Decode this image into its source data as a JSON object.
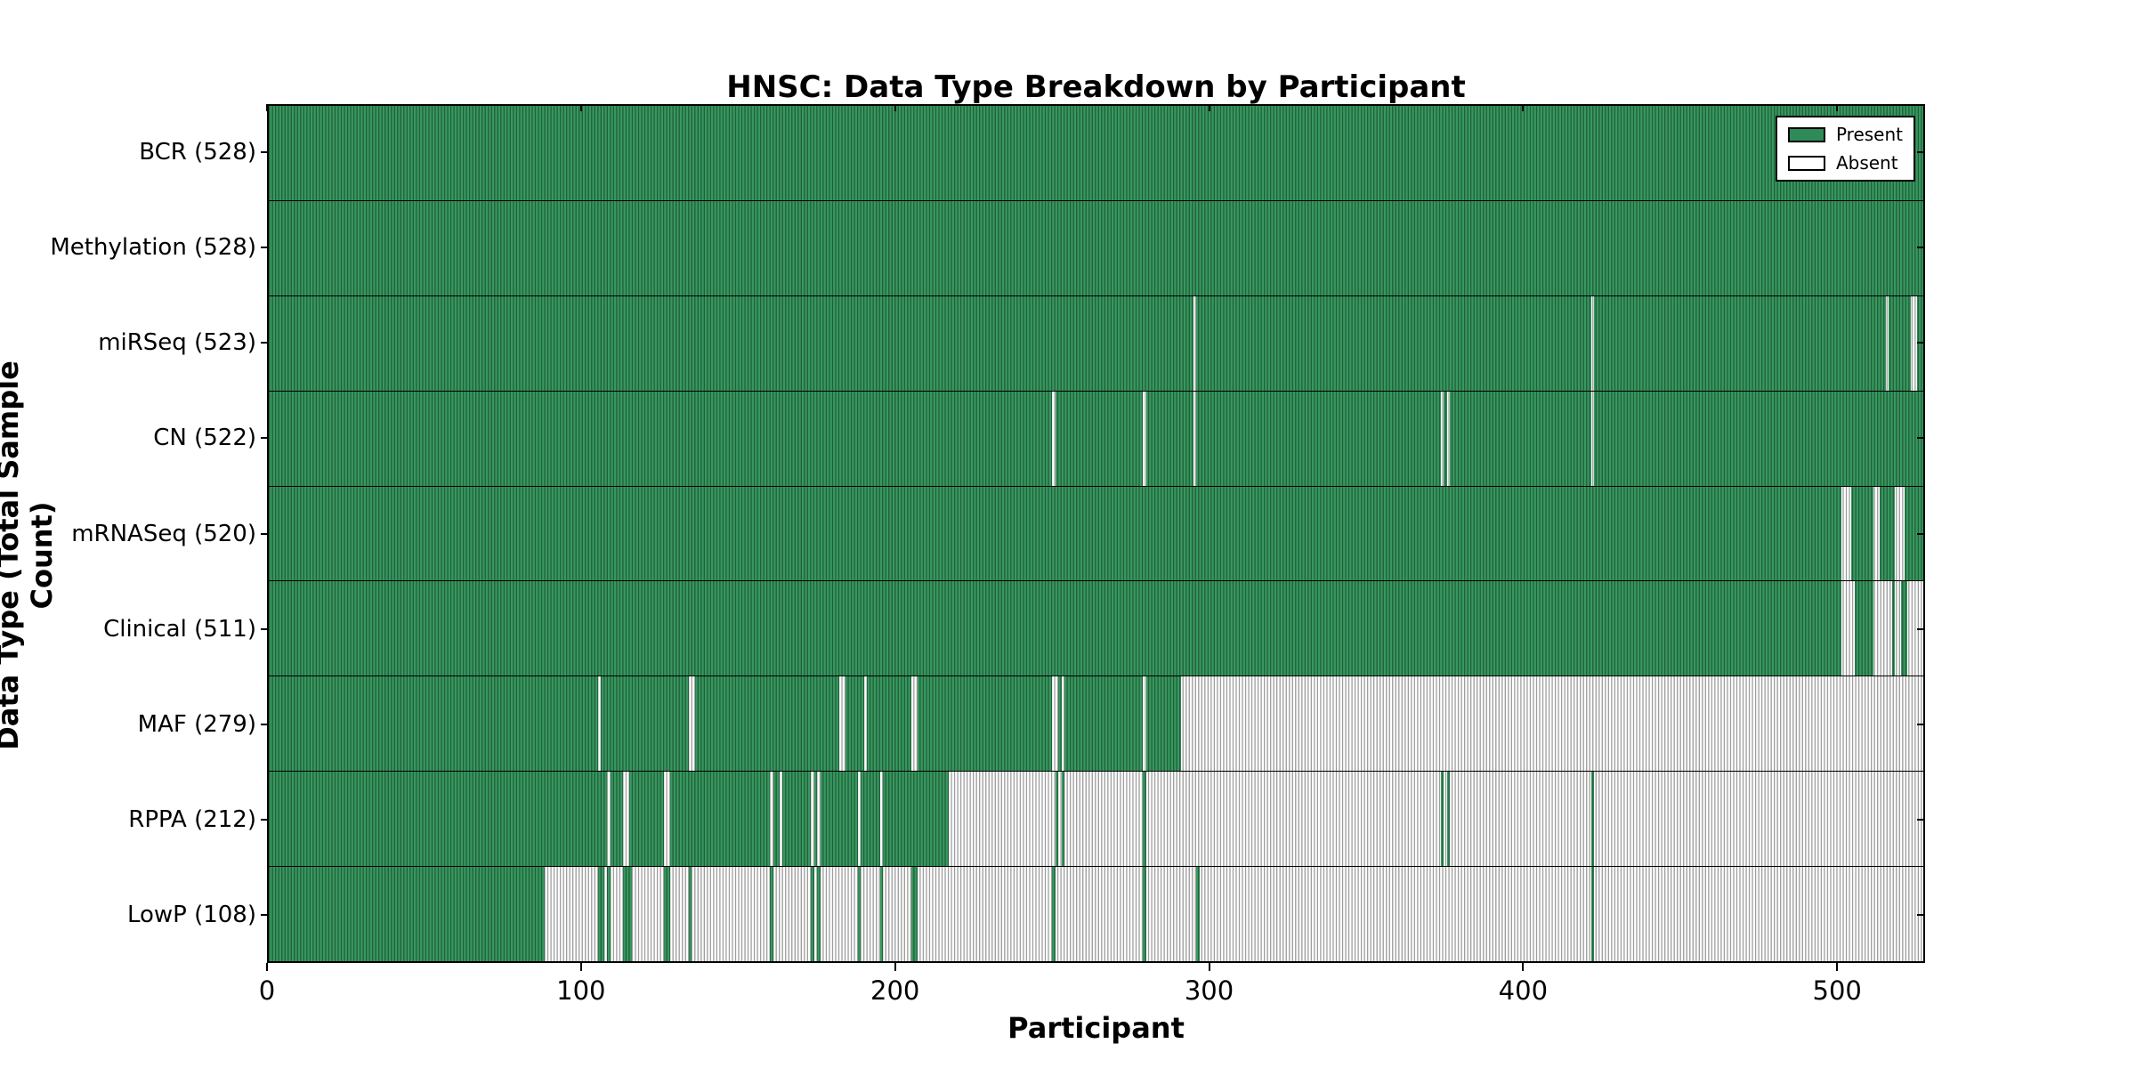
{
  "chart_data": {
    "type": "heatmap",
    "title": "HNSC: Data Type Breakdown by Participant",
    "xlabel": "Participant",
    "ylabel": "Data Type (Total Sample Count)",
    "xlim": [
      0,
      528
    ],
    "x_ticks": [
      0,
      100,
      200,
      300,
      400,
      500
    ],
    "grid": false,
    "legend_position": "upper right",
    "legend": [
      {
        "label": "Present",
        "color": "#2e8b57"
      },
      {
        "label": "Absent",
        "color": "#ffffff"
      }
    ],
    "colors": {
      "present_fill": "#37995f",
      "absent_fill": "#ffffff",
      "hatch_line": "rgba(0,0,0,0.38)",
      "border": "#000000"
    },
    "rows": [
      {
        "label": "BCR (528)",
        "data_type": "BCR",
        "total": 528,
        "segments": [
          [
            0,
            528,
            "p"
          ]
        ]
      },
      {
        "label": "Methylation (528)",
        "data_type": "Methylation",
        "total": 528,
        "segments": [
          [
            0,
            528,
            "p"
          ]
        ]
      },
      {
        "label": "miRSeq (523)",
        "data_type": "miRSeq",
        "total": 523,
        "segments": [
          [
            0,
            295,
            "p"
          ],
          [
            295,
            296,
            "a"
          ],
          [
            296,
            422,
            "p"
          ],
          [
            422,
            423,
            "a"
          ],
          [
            423,
            516,
            "p"
          ],
          [
            516,
            517,
            "a"
          ],
          [
            517,
            524,
            "p"
          ],
          [
            524,
            526,
            "a"
          ],
          [
            526,
            528,
            "p"
          ]
        ]
      },
      {
        "label": "CN (522)",
        "data_type": "CN",
        "total": 522,
        "segments": [
          [
            0,
            250,
            "p"
          ],
          [
            250,
            251,
            "a"
          ],
          [
            251,
            279,
            "p"
          ],
          [
            279,
            280,
            "a"
          ],
          [
            280,
            295,
            "p"
          ],
          [
            295,
            296,
            "a"
          ],
          [
            296,
            374,
            "p"
          ],
          [
            374,
            375,
            "a"
          ],
          [
            375,
            376,
            "p"
          ],
          [
            376,
            377,
            "a"
          ],
          [
            377,
            422,
            "p"
          ],
          [
            422,
            423,
            "a"
          ],
          [
            423,
            528,
            "p"
          ]
        ]
      },
      {
        "label": "mRNASeq (520)",
        "data_type": "mRNASeq",
        "total": 520,
        "segments": [
          [
            0,
            502,
            "p"
          ],
          [
            502,
            505,
            "a"
          ],
          [
            505,
            512,
            "p"
          ],
          [
            512,
            514,
            "a"
          ],
          [
            514,
            519,
            "p"
          ],
          [
            519,
            522,
            "a"
          ],
          [
            522,
            528,
            "p"
          ]
        ]
      },
      {
        "label": "Clinical (511)",
        "data_type": "Clinical",
        "total": 511,
        "segments": [
          [
            0,
            502,
            "p"
          ],
          [
            502,
            506,
            "a"
          ],
          [
            506,
            512,
            "p"
          ],
          [
            512,
            518,
            "a"
          ],
          [
            518,
            519,
            "p"
          ],
          [
            519,
            521,
            "a"
          ],
          [
            521,
            523,
            "p"
          ],
          [
            523,
            528,
            "a"
          ]
        ]
      },
      {
        "label": "MAF (279)",
        "data_type": "MAF",
        "total": 279,
        "segments": [
          [
            0,
            105,
            "p"
          ],
          [
            105,
            106,
            "a"
          ],
          [
            106,
            134,
            "p"
          ],
          [
            134,
            136,
            "a"
          ],
          [
            136,
            182,
            "p"
          ],
          [
            182,
            184,
            "a"
          ],
          [
            184,
            190,
            "p"
          ],
          [
            190,
            191,
            "a"
          ],
          [
            191,
            205,
            "p"
          ],
          [
            205,
            207,
            "a"
          ],
          [
            207,
            250,
            "p"
          ],
          [
            250,
            252,
            "a"
          ],
          [
            252,
            253,
            "p"
          ],
          [
            253,
            254,
            "a"
          ],
          [
            254,
            279,
            "p"
          ],
          [
            279,
            280,
            "a"
          ],
          [
            280,
            291,
            "p"
          ],
          [
            291,
            528,
            "a"
          ]
        ]
      },
      {
        "label": "RPPA (212)",
        "data_type": "RPPA",
        "total": 212,
        "segments": [
          [
            0,
            108,
            "p"
          ],
          [
            108,
            109,
            "a"
          ],
          [
            109,
            113,
            "p"
          ],
          [
            113,
            115,
            "a"
          ],
          [
            115,
            126,
            "p"
          ],
          [
            126,
            128,
            "a"
          ],
          [
            128,
            160,
            "p"
          ],
          [
            160,
            161,
            "a"
          ],
          [
            161,
            163,
            "p"
          ],
          [
            163,
            164,
            "a"
          ],
          [
            164,
            173,
            "p"
          ],
          [
            173,
            174,
            "a"
          ],
          [
            174,
            175,
            "p"
          ],
          [
            175,
            176,
            "a"
          ],
          [
            176,
            188,
            "p"
          ],
          [
            188,
            189,
            "a"
          ],
          [
            189,
            195,
            "p"
          ],
          [
            195,
            196,
            "a"
          ],
          [
            196,
            217,
            "p"
          ],
          [
            217,
            251,
            "a"
          ],
          [
            251,
            252,
            "p"
          ],
          [
            252,
            253,
            "a"
          ],
          [
            253,
            254,
            "p"
          ],
          [
            254,
            279,
            "a"
          ],
          [
            279,
            280,
            "p"
          ],
          [
            280,
            374,
            "a"
          ],
          [
            374,
            375,
            "p"
          ],
          [
            375,
            376,
            "a"
          ],
          [
            376,
            377,
            "p"
          ],
          [
            377,
            422,
            "a"
          ],
          [
            422,
            423,
            "p"
          ],
          [
            423,
            528,
            "a"
          ]
        ]
      },
      {
        "label": "LowP (108)",
        "data_type": "LowP",
        "total": 108,
        "segments": [
          [
            0,
            88,
            "p"
          ],
          [
            88,
            105,
            "a"
          ],
          [
            105,
            107,
            "p"
          ],
          [
            107,
            108,
            "a"
          ],
          [
            108,
            109,
            "p"
          ],
          [
            109,
            113,
            "a"
          ],
          [
            113,
            116,
            "p"
          ],
          [
            116,
            126,
            "a"
          ],
          [
            126,
            128,
            "p"
          ],
          [
            128,
            134,
            "a"
          ],
          [
            134,
            135,
            "p"
          ],
          [
            135,
            160,
            "a"
          ],
          [
            160,
            161,
            "p"
          ],
          [
            161,
            173,
            "a"
          ],
          [
            173,
            174,
            "p"
          ],
          [
            174,
            175,
            "a"
          ],
          [
            175,
            176,
            "p"
          ],
          [
            176,
            188,
            "a"
          ],
          [
            188,
            189,
            "p"
          ],
          [
            189,
            195,
            "a"
          ],
          [
            195,
            196,
            "p"
          ],
          [
            196,
            205,
            "a"
          ],
          [
            205,
            207,
            "p"
          ],
          [
            207,
            250,
            "a"
          ],
          [
            250,
            251,
            "p"
          ],
          [
            251,
            279,
            "a"
          ],
          [
            279,
            280,
            "p"
          ],
          [
            280,
            296,
            "a"
          ],
          [
            296,
            297,
            "p"
          ],
          [
            297,
            422,
            "a"
          ],
          [
            422,
            423,
            "p"
          ],
          [
            423,
            528,
            "a"
          ]
        ]
      }
    ]
  }
}
